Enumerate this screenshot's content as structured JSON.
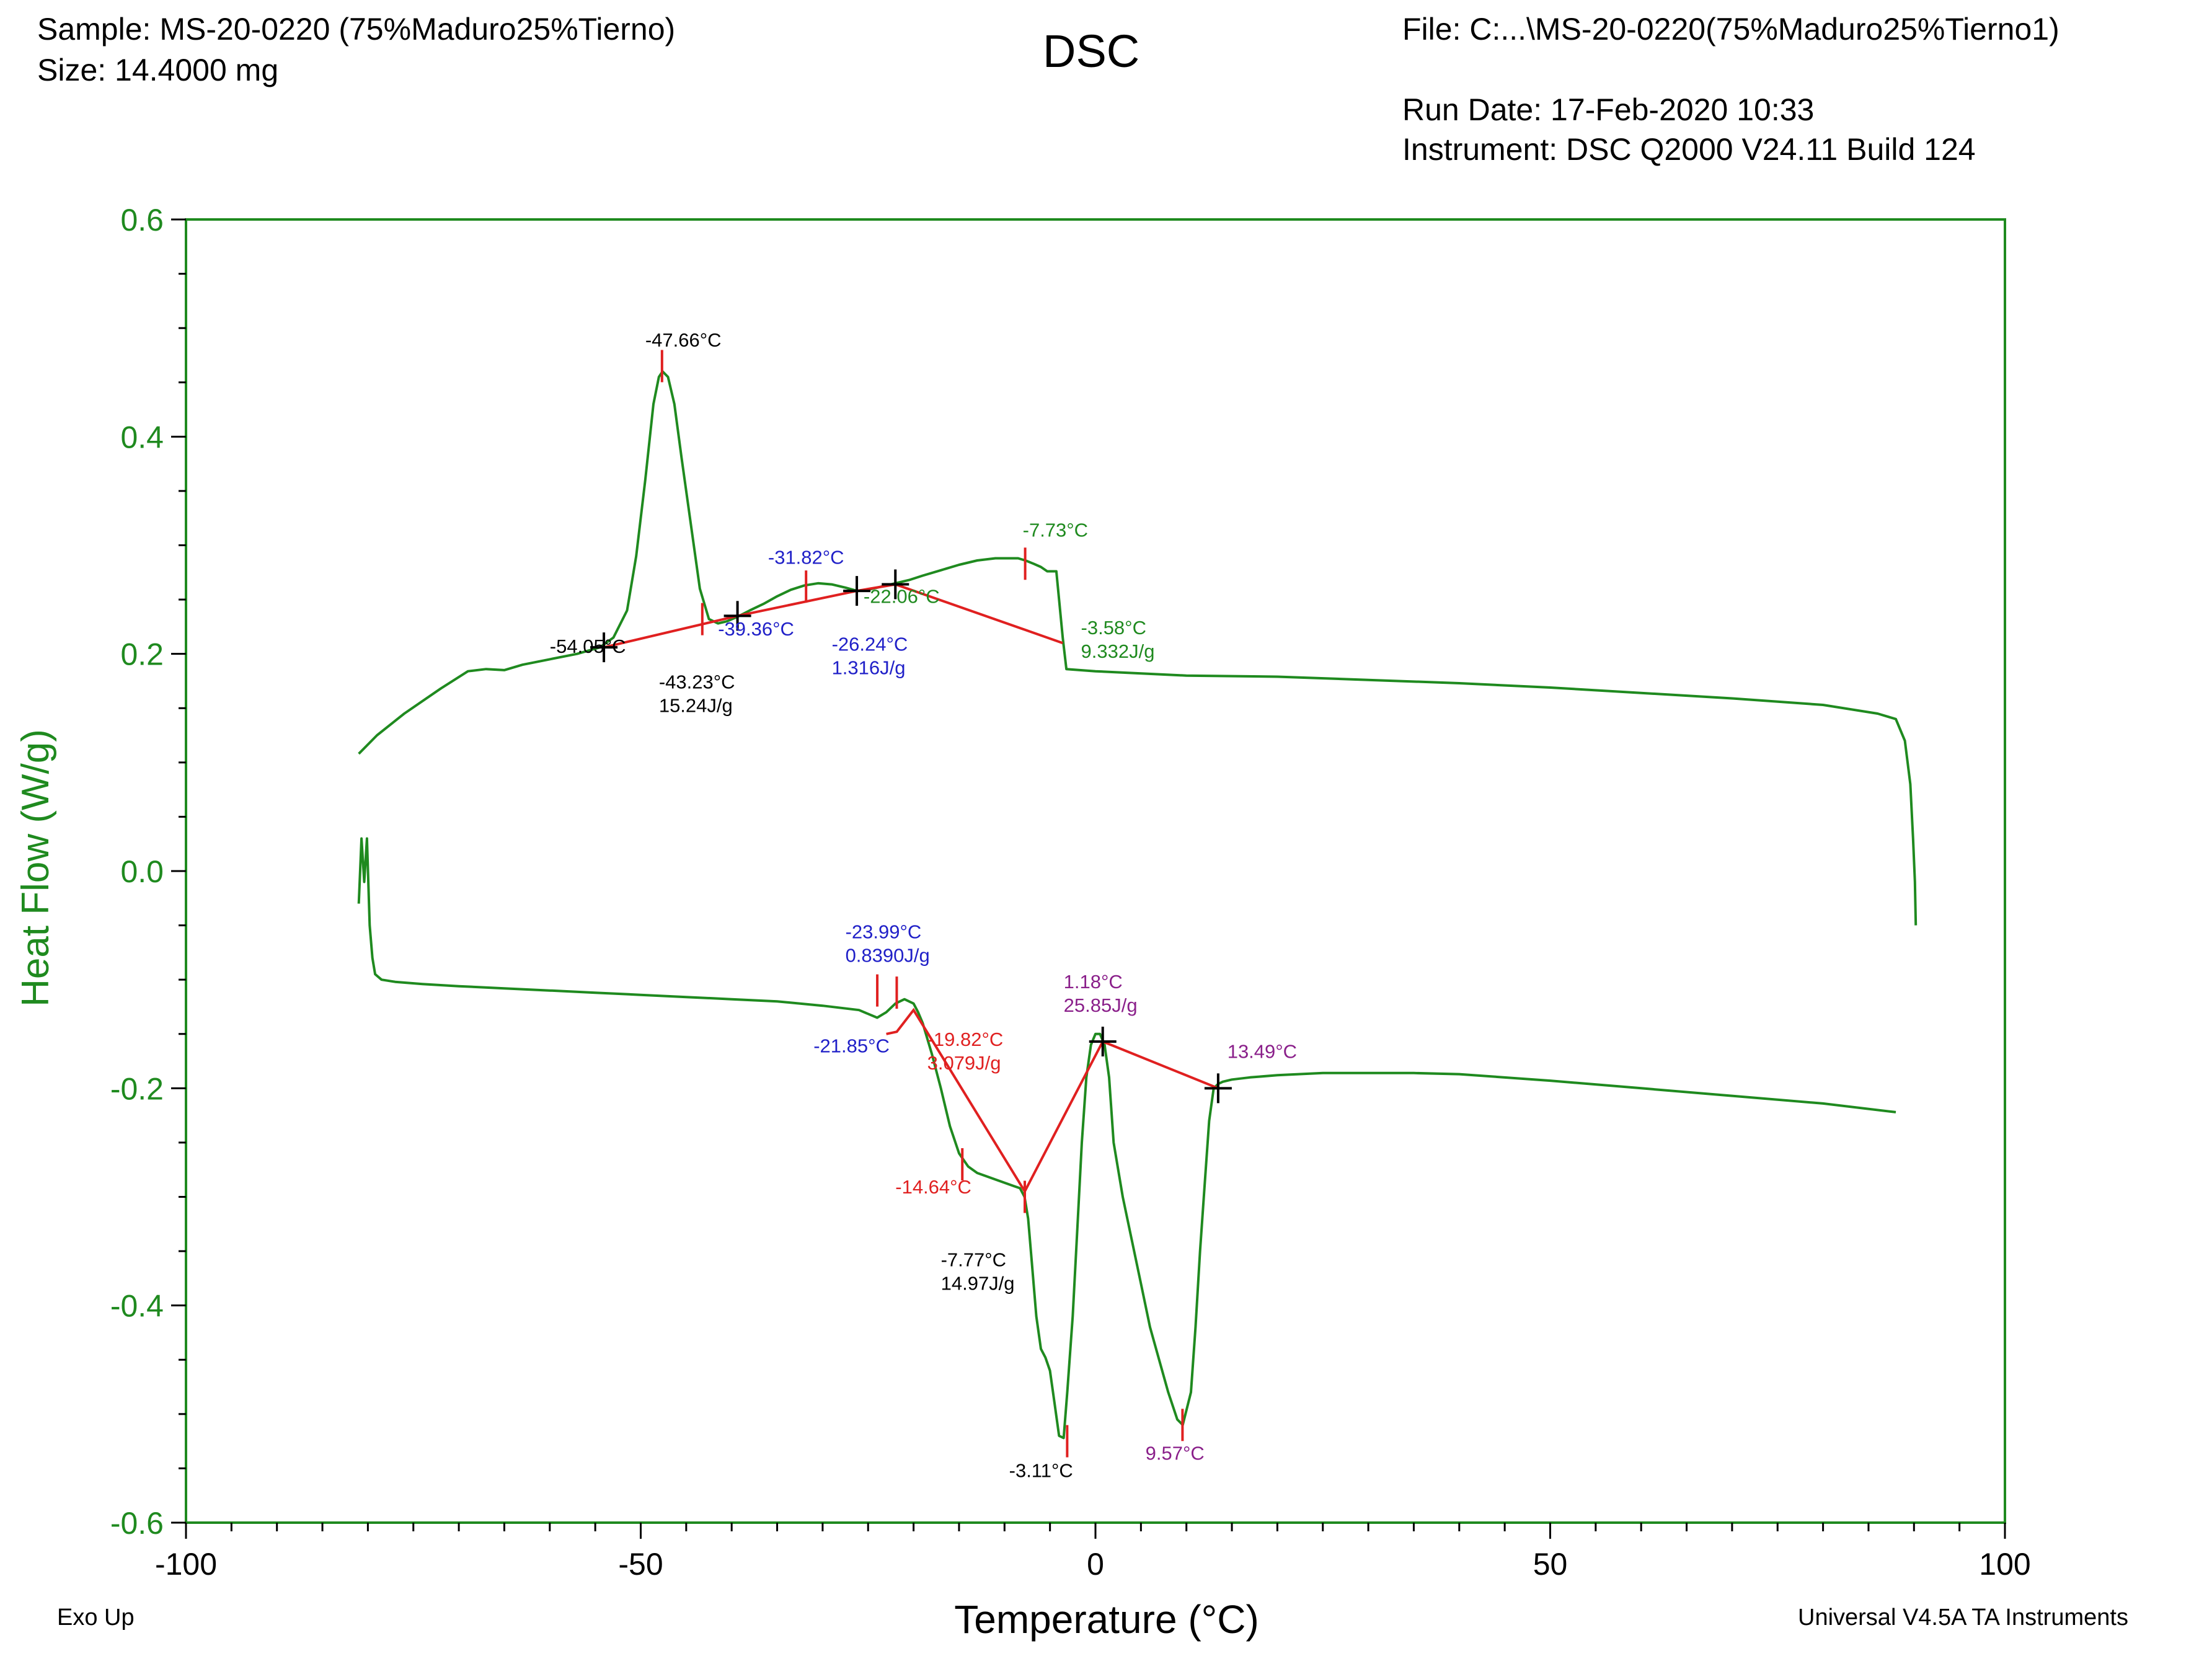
{
  "header": {
    "sample": "Sample: MS-20-0220 (75%Maduro25%Tierno)",
    "size": "Size:  14.4000 mg",
    "title": "DSC",
    "file": "File: C:...\\MS-20-0220(75%Maduro25%Tierno1)",
    "run_date": "Run Date: 17-Feb-2020 10:33",
    "instrument": "Instrument: DSC Q2000 V24.11 Build 124"
  },
  "footer": {
    "exo": "Exo Up",
    "software": "Universal V4.5A TA Instruments"
  },
  "colors": {
    "curve": "#1f8a1f",
    "integration": "#e02020",
    "axis_text": "#1f8a1f",
    "blue_label": "#2020c8",
    "purple_label": "#8a1f8a",
    "black_label": "#000000"
  },
  "chart_data": {
    "type": "line",
    "title": "DSC",
    "xlabel": "Temperature (°C)",
    "ylabel": "Heat Flow (W/g)",
    "xlim": [
      -100,
      100
    ],
    "ylim": [
      -0.6,
      0.6
    ],
    "xticks": [
      -100,
      -50,
      0,
      50,
      100
    ],
    "yticks": [
      0.6,
      0.4,
      0.2,
      0.0,
      -0.2,
      -0.4,
      -0.6
    ],
    "xtick_labels": [
      "-100",
      "-50",
      "0",
      "50",
      "100"
    ],
    "ytick_labels": [
      "0.6",
      "0.4",
      "0.2",
      "0.0",
      "-0.2",
      "-0.4",
      "-0.6"
    ],
    "grid": false,
    "series": [
      {
        "name": "",
        "segment": "cooling",
        "x": [
          -81.0,
          -79,
          -76,
          -72,
          -69,
          -67,
          -65,
          -63,
          -60,
          -57,
          -54.5,
          -53,
          -51.5,
          -50.5,
          -49.5,
          -48.6,
          -48.0,
          -47.6,
          -47.0,
          -46.3,
          -45.5,
          -44.5,
          -43.5,
          -42.5,
          -41.5,
          -40.5,
          -39.4,
          -38.0,
          -36.5,
          -35.0,
          -33.5,
          -32.0,
          -30.5,
          -29.0,
          -27.5,
          -26.2,
          -25.0,
          -23.5,
          -22.0,
          -20.5,
          -19.0,
          -17.0,
          -15.0,
          -13.0,
          -11.0,
          -9.5,
          -8.5,
          -7.7,
          -6.8,
          -6.0,
          -5.3,
          -4.8,
          -4.3,
          -4.0,
          -3.6,
          -3.2,
          0,
          10,
          20,
          30,
          40,
          50,
          60,
          70,
          80,
          86,
          88,
          89,
          89.6,
          89.9,
          90.1,
          90.2
        ],
        "y": [
          0.108,
          0.125,
          0.145,
          0.168,
          0.184,
          0.186,
          0.185,
          0.19,
          0.195,
          0.2,
          0.206,
          0.215,
          0.24,
          0.29,
          0.36,
          0.43,
          0.455,
          0.46,
          0.455,
          0.43,
          0.38,
          0.32,
          0.26,
          0.232,
          0.228,
          0.23,
          0.234,
          0.24,
          0.246,
          0.253,
          0.259,
          0.263,
          0.265,
          0.264,
          0.261,
          0.258,
          0.259,
          0.262,
          0.265,
          0.268,
          0.272,
          0.277,
          0.282,
          0.286,
          0.288,
          0.288,
          0.288,
          0.286,
          0.283,
          0.28,
          0.276,
          0.276,
          0.276,
          0.25,
          0.215,
          0.186,
          0.184,
          0.18,
          0.179,
          0.176,
          0.173,
          0.169,
          0.164,
          0.159,
          0.153,
          0.145,
          0.14,
          0.12,
          0.08,
          0.03,
          -0.01,
          -0.05
        ]
      },
      {
        "name": "",
        "segment": "heating",
        "x": [
          -81.0,
          -80.7,
          -80.4,
          -80.1,
          -79.8,
          -79.5,
          -79.2,
          -78.5,
          -77,
          -74,
          -70,
          -65,
          -60,
          -55,
          -50,
          -45,
          -40,
          -35,
          -30,
          -26,
          -24,
          -23,
          -22,
          -21,
          -20,
          -19.5,
          -19,
          -18,
          -17,
          -16,
          -15,
          -14,
          -13,
          -12,
          -11,
          -10,
          -9,
          -8.3,
          -7.8,
          -7.4,
          -7,
          -6.5,
          -6,
          -5.5,
          -5,
          -4.5,
          -4,
          -3.5,
          -3.1,
          -2.5,
          -2,
          -1.5,
          -1,
          -0.5,
          0,
          0.5,
          1,
          1.5,
          2,
          3,
          4,
          5,
          6,
          7,
          8,
          9,
          9.6,
          10.5,
          11,
          11.5,
          12,
          12.5,
          13,
          13.5,
          14,
          15,
          17,
          20,
          25,
          30,
          35,
          40,
          50,
          60,
          70,
          80,
          88
        ],
        "y": [
          -0.03,
          0.03,
          -0.01,
          0.03,
          -0.05,
          -0.08,
          -0.095,
          -0.1,
          -0.102,
          -0.104,
          -0.106,
          -0.108,
          -0.11,
          -0.112,
          -0.114,
          -0.116,
          -0.118,
          -0.12,
          -0.124,
          -0.128,
          -0.135,
          -0.13,
          -0.122,
          -0.118,
          -0.122,
          -0.13,
          -0.14,
          -0.168,
          -0.2,
          -0.235,
          -0.26,
          -0.272,
          -0.278,
          -0.281,
          -0.284,
          -0.287,
          -0.29,
          -0.292,
          -0.3,
          -0.32,
          -0.36,
          -0.41,
          -0.44,
          -0.448,
          -0.46,
          -0.49,
          -0.52,
          -0.522,
          -0.48,
          -0.41,
          -0.33,
          -0.25,
          -0.19,
          -0.16,
          -0.15,
          -0.15,
          -0.16,
          -0.19,
          -0.25,
          -0.3,
          -0.34,
          -0.38,
          -0.42,
          -0.45,
          -0.48,
          -0.505,
          -0.51,
          -0.48,
          -0.42,
          -0.35,
          -0.29,
          -0.23,
          -0.2,
          -0.196,
          -0.194,
          -0.192,
          -0.19,
          -0.188,
          -0.186,
          -0.186,
          -0.186,
          -0.187,
          -0.193,
          -0.2,
          -0.207,
          -0.214,
          -0.222
        ]
      }
    ],
    "integration_lines": [
      {
        "x": [
          -54.05,
          -39.36
        ],
        "y": [
          0.206,
          0.235
        ]
      },
      {
        "x": [
          -39.36,
          -26.24
        ],
        "y": [
          0.235,
          0.258
        ]
      },
      {
        "x": [
          -26.24,
          -22.0,
          -3.6
        ],
        "y": [
          0.258,
          0.264,
          0.21
        ]
      },
      {
        "x": [
          -23.0,
          -21.85,
          -20.0,
          -7.77,
          0.8,
          13.49
        ],
        "y": [
          -0.15,
          -0.148,
          -0.128,
          -0.295,
          -0.157,
          -0.2
        ]
      }
    ],
    "markers": [
      {
        "x": -54.05,
        "y": 0.206,
        "kind": "cross"
      },
      {
        "x": -39.36,
        "y": 0.235,
        "kind": "cross"
      },
      {
        "x": -26.24,
        "y": 0.258,
        "kind": "cross"
      },
      {
        "x": -22.0,
        "y": 0.264,
        "kind": "cross"
      },
      {
        "x": 0.8,
        "y": -0.157,
        "kind": "cross"
      },
      {
        "x": 13.49,
        "y": -0.2,
        "kind": "cross"
      },
      {
        "x": -47.66,
        "y": 0.465,
        "kind": "tick"
      },
      {
        "x": -43.23,
        "y": 0.232,
        "kind": "tick"
      },
      {
        "x": -31.82,
        "y": 0.262,
        "kind": "tick"
      },
      {
        "x": -7.73,
        "y": 0.283,
        "kind": "tick"
      },
      {
        "x": -23.99,
        "y": -0.11,
        "kind": "tick"
      },
      {
        "x": -21.85,
        "y": -0.112,
        "kind": "tick"
      },
      {
        "x": -14.64,
        "y": -0.27,
        "kind": "tick"
      },
      {
        "x": -7.77,
        "y": -0.3,
        "kind": "tick"
      },
      {
        "x": -3.11,
        "y": -0.525,
        "kind": "tick"
      },
      {
        "x": 9.57,
        "y": -0.51,
        "kind": "tick"
      }
    ],
    "annotations": [
      {
        "lines": [
          "-47.66°C"
        ],
        "x": -49.5,
        "y": 0.483,
        "color": "black_label"
      },
      {
        "lines": [
          "-54.05°C"
        ],
        "x": -60.0,
        "y": 0.201,
        "color": "black_label"
      },
      {
        "lines": [
          "-43.23°C",
          "15.24J/g"
        ],
        "x": -48.0,
        "y": 0.168,
        "color": "black_label"
      },
      {
        "lines": [
          "-39.36°C"
        ],
        "x": -41.5,
        "y": 0.217,
        "color": "blue_label"
      },
      {
        "lines": [
          "-31.82°C"
        ],
        "x": -36.0,
        "y": 0.283,
        "color": "blue_label"
      },
      {
        "lines": [
          "-26.24°C",
          "1.316J/g"
        ],
        "x": -29.0,
        "y": 0.203,
        "color": "blue_label"
      },
      {
        "lines": [
          "-22.06°C"
        ],
        "x": -25.5,
        "y": 0.247,
        "color": "axis_text"
      },
      {
        "lines": [
          "-7.73°C"
        ],
        "x": -8.0,
        "y": 0.308,
        "color": "axis_text"
      },
      {
        "lines": [
          "-3.58°C",
          "9.332J/g"
        ],
        "x": -1.6,
        "y": 0.218,
        "color": "axis_text"
      },
      {
        "lines": [
          "-23.99°C",
          "0.8390J/g"
        ],
        "x": -27.5,
        "y": -0.062,
        "color": "blue_label"
      },
      {
        "lines": [
          "-21.85°C"
        ],
        "x": -31.0,
        "y": -0.167,
        "color": "blue_label"
      },
      {
        "lines": [
          "-19.82°C",
          "3.079J/g"
        ],
        "x": -18.5,
        "y": -0.161,
        "color": "integration"
      },
      {
        "lines": [
          "-14.64°C"
        ],
        "x": -22.0,
        "y": -0.297,
        "color": "integration"
      },
      {
        "lines": [
          "-7.77°C",
          "14.97J/g"
        ],
        "x": -17.0,
        "y": -0.364,
        "color": "black_label"
      },
      {
        "lines": [
          "1.18°C",
          "25.85J/g"
        ],
        "x": -3.5,
        "y": -0.108,
        "color": "purple_label"
      },
      {
        "lines": [
          "13.49°C"
        ],
        "x": 14.5,
        "y": -0.172,
        "color": "purple_label"
      },
      {
        "lines": [
          "-3.11°C"
        ],
        "x": -9.5,
        "y": -0.558,
        "color": "black_label"
      },
      {
        "lines": [
          "9.57°C"
        ],
        "x": 5.5,
        "y": -0.542,
        "color": "purple_label"
      }
    ]
  }
}
